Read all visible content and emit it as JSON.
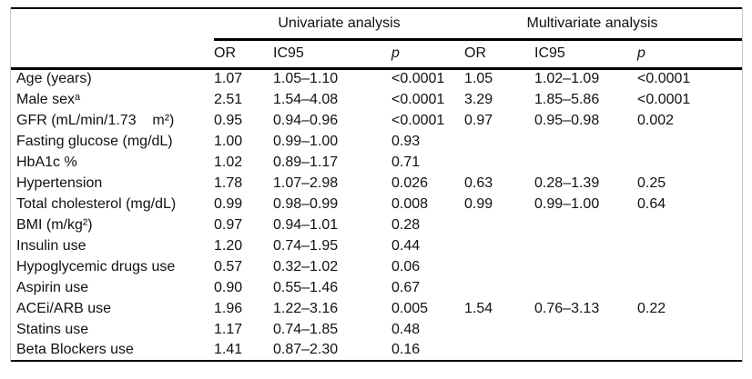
{
  "table": {
    "group_headers": [
      {
        "label": "Univariate analysis"
      },
      {
        "label": "Multivariate analysis"
      }
    ],
    "column_headers": [
      "OR",
      "IC95",
      "p",
      "OR",
      "IC95",
      "p"
    ],
    "rows": [
      {
        "label": "Age (years)",
        "cells": [
          "1.07",
          "1.05–1.10",
          "<0.0001",
          "1.05",
          "1.02–1.09",
          "<0.0001"
        ]
      },
      {
        "label": "Male sexᵃ",
        "cells": [
          "2.51",
          "1.54–4.08",
          "<0.0001",
          "3.29",
          "1.85–5.86",
          "<0.0001"
        ]
      },
      {
        "label": "GFR (mL/min/1.73    m²)",
        "cells": [
          "0.95",
          "0.94–0.96",
          "<0.0001",
          "0.97",
          "0.95–0.98",
          "0.002"
        ]
      },
      {
        "label": "Fasting glucose (mg/dL)",
        "cells": [
          "1.00",
          "0.99–1.00",
          "0.93",
          "",
          "",
          ""
        ]
      },
      {
        "label": "HbA1c %",
        "cells": [
          "1.02",
          "0.89–1.17",
          "0.71",
          "",
          "",
          ""
        ]
      },
      {
        "label": "Hypertension",
        "cells": [
          "1.78",
          "1.07–2.98",
          "0.026",
          "0.63",
          "0.28–1.39",
          "0.25"
        ]
      },
      {
        "label": "Total cholesterol (mg/dL)",
        "cells": [
          "0.99",
          "0.98–0.99",
          "0.008",
          "0.99",
          "0.99–1.00",
          "0.64"
        ]
      },
      {
        "label": "BMI (m/kg²)",
        "cells": [
          "0.97",
          "0.94–1.01",
          "0.28",
          "",
          "",
          ""
        ]
      },
      {
        "label": "Insulin use",
        "cells": [
          "1.20",
          "0.74–1.95",
          "0.44",
          "",
          "",
          ""
        ]
      },
      {
        "label": "Hypoglycemic drugs use",
        "cells": [
          "0.57",
          "0.32–1.02",
          "0.06",
          "",
          "",
          ""
        ]
      },
      {
        "label": "Aspirin use",
        "cells": [
          "0.90",
          "0.55–1.46",
          "0.67",
          "",
          "",
          ""
        ]
      },
      {
        "label": "ACEi/ARB use",
        "cells": [
          "1.96",
          "1.22–3.16",
          "0.005",
          "1.54",
          "0.76–3.13",
          "0.22"
        ]
      },
      {
        "label": "Statins use",
        "cells": [
          "1.17",
          "0.74–1.85",
          "0.48",
          "",
          "",
          ""
        ]
      },
      {
        "label": "Beta Blockers use",
        "cells": [
          "1.41",
          "0.87–2.30",
          "0.16",
          "",
          "",
          ""
        ]
      }
    ]
  },
  "colors": {
    "rule": "#000000",
    "frame": "#c9c9c9",
    "text": "#111111",
    "background": "#ffffff"
  }
}
